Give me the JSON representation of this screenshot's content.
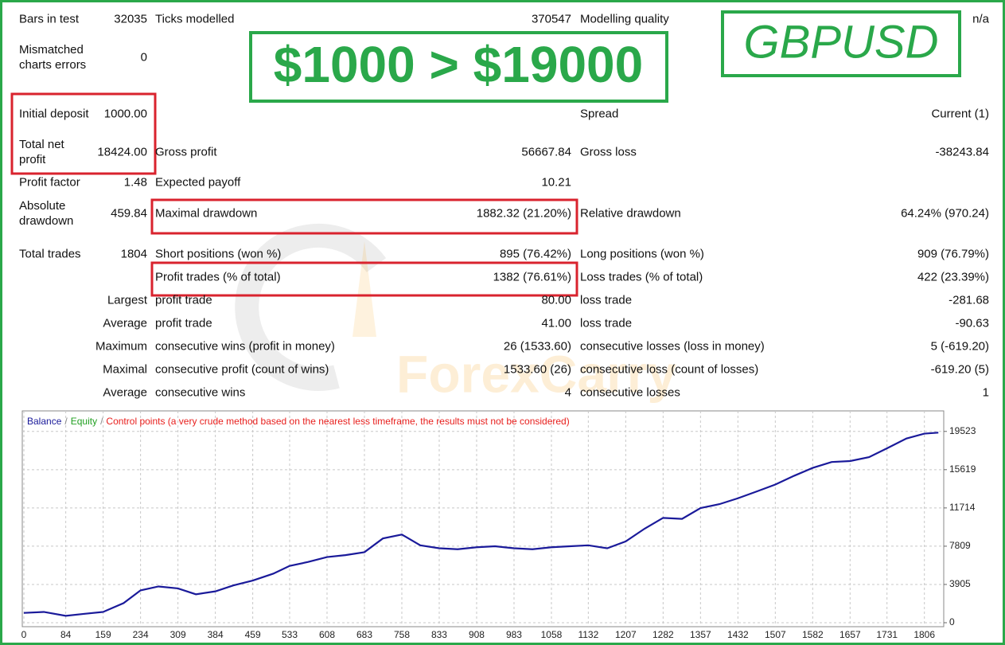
{
  "headline": "$1000 > $19000",
  "symbol": "GBPUSD",
  "watermark": "ForexCarry",
  "report": {
    "rows": [
      {
        "label1": "Bars in test",
        "value1": "32035",
        "label2": "Ticks modelled",
        "value2": "370547",
        "label3": "Modelling quality",
        "value3": "n/a"
      },
      {
        "label1": "Mismatched charts errors",
        "value1": "0"
      },
      {
        "label1": "Initial deposit",
        "value1": "1000.00",
        "label3": "Spread",
        "value3": "Current (1)"
      },
      {
        "label1": "Total net profit",
        "value1": "18424.00",
        "label2": "Gross profit",
        "value2": "56667.84",
        "label3": "Gross loss",
        "value3": "-38243.84"
      },
      {
        "label1": "Profit factor",
        "value1": "1.48",
        "label2": "Expected payoff",
        "value2": "10.21"
      },
      {
        "label1": "Absolute drawdown",
        "value1": "459.84",
        "label2": "Maximal drawdown",
        "value2": "1882.32 (21.20%)",
        "label3": "Relative drawdown",
        "value3": "64.24% (970.24)"
      },
      {
        "label1": "Total trades",
        "value1": "1804",
        "label2": "Short positions (won %)",
        "value2": "895 (76.42%)",
        "label3": "Long positions (won %)",
        "value3": "909 (76.79%)"
      },
      {
        "label2": "Profit trades (% of total)",
        "value2": "1382 (76.61%)",
        "label3": "Loss trades (% of total)",
        "value3": "422 (23.39%)"
      },
      {
        "label1": "Largest",
        "label2": "profit trade",
        "value2": "80.00",
        "label3": "loss trade",
        "value3": "-281.68"
      },
      {
        "label1": "Average",
        "label2": "profit trade",
        "value2": "41.00",
        "label3": "loss trade",
        "value3": "-90.63"
      },
      {
        "label1": "Maximum",
        "label2": "consecutive wins (profit in money)",
        "value2": "26 (1533.60)",
        "label3": "consecutive losses (loss in money)",
        "value3": "5 (-619.20)"
      },
      {
        "label1": "Maximal",
        "label2": "consecutive profit (count of wins)",
        "value2": "1533.60 (26)",
        "label3": "consecutive loss (count of losses)",
        "value3": "-619.20 (5)"
      },
      {
        "label1": "Average",
        "label2": "consecutive wins",
        "value2": "4",
        "label3": "consecutive losses",
        "value3": "1"
      }
    ]
  },
  "chart_data": {
    "type": "line",
    "separator": "/",
    "legend_extra": [
      {
        "name": "Equity",
        "color": "#22a022"
      },
      {
        "name": "Control points (a very crude method based on the nearest less timeframe, the results must not be considered)",
        "color": "#e8201e"
      }
    ],
    "series": [
      {
        "name": "Balance",
        "color": "#1a1a9a",
        "x": [
          0,
          40,
          84,
          120,
          159,
          200,
          234,
          270,
          309,
          345,
          384,
          420,
          459,
          500,
          533,
          570,
          608,
          645,
          683,
          720,
          758,
          795,
          833,
          870,
          908,
          945,
          983,
          1020,
          1058,
          1095,
          1132,
          1170,
          1207,
          1245,
          1282,
          1320,
          1357,
          1395,
          1432,
          1470,
          1507,
          1545,
          1582,
          1620,
          1657,
          1695,
          1731,
          1770,
          1806,
          1834
        ],
        "values": [
          1000,
          1100,
          700,
          900,
          1100,
          2000,
          3300,
          3700,
          3500,
          2900,
          3200,
          3800,
          4300,
          5000,
          5800,
          6200,
          6700,
          6900,
          7200,
          8600,
          9000,
          7900,
          7600,
          7500,
          7700,
          7800,
          7600,
          7500,
          7700,
          7800,
          7900,
          7600,
          8300,
          9600,
          10700,
          10600,
          11700,
          12100,
          12700,
          13400,
          14100,
          15000,
          15800,
          16400,
          16500,
          16900,
          17800,
          18800,
          19300,
          19400
        ]
      }
    ],
    "xlim": [
      0,
      1840
    ],
    "xticks": [
      0,
      84,
      159,
      234,
      309,
      384,
      459,
      533,
      608,
      683,
      758,
      833,
      908,
      983,
      1058,
      1132,
      1207,
      1282,
      1357,
      1432,
      1507,
      1582,
      1657,
      1731,
      1806
    ],
    "ylim": [
      0,
      21700
    ],
    "yticks": [
      0,
      3905,
      7809,
      11714,
      15619,
      19523
    ],
    "grid": true
  }
}
